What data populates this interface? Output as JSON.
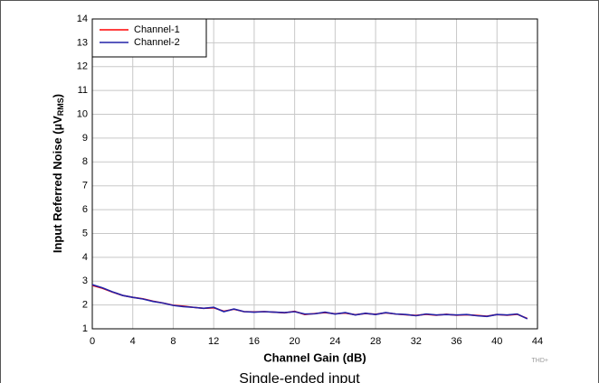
{
  "chart_data": {
    "type": "line",
    "xlabel": "Channel Gain (dB)",
    "ylabel": "Input Referred Noise (µV",
    "ylabel_sub": "RMS",
    "ylabel_end": ")",
    "x": [
      0,
      1,
      2,
      3,
      4,
      5,
      6,
      7,
      8,
      9,
      10,
      11,
      12,
      13,
      14,
      15,
      16,
      17,
      18,
      19,
      20,
      21,
      22,
      23,
      24,
      25,
      26,
      27,
      28,
      29,
      30,
      31,
      32,
      33,
      34,
      35,
      36,
      37,
      38,
      39,
      40,
      41,
      42,
      43
    ],
    "series": [
      {
        "name": "Channel-1",
        "color": "#ff0000",
        "values": [
          2.82,
          2.7,
          2.54,
          2.4,
          2.32,
          2.26,
          2.16,
          2.08,
          1.99,
          1.95,
          1.9,
          1.86,
          1.88,
          1.74,
          1.82,
          1.72,
          1.71,
          1.72,
          1.7,
          1.67,
          1.73,
          1.6,
          1.64,
          1.68,
          1.63,
          1.66,
          1.59,
          1.64,
          1.61,
          1.67,
          1.62,
          1.59,
          1.56,
          1.61,
          1.57,
          1.61,
          1.57,
          1.59,
          1.56,
          1.53,
          1.6,
          1.57,
          1.61,
          1.43
        ]
      },
      {
        "name": "Channel-2",
        "color": "#2222a8",
        "values": [
          2.85,
          2.72,
          2.55,
          2.4,
          2.32,
          2.25,
          2.15,
          2.08,
          1.98,
          1.93,
          1.9,
          1.86,
          1.9,
          1.72,
          1.83,
          1.72,
          1.7,
          1.72,
          1.7,
          1.68,
          1.72,
          1.62,
          1.63,
          1.7,
          1.62,
          1.68,
          1.58,
          1.65,
          1.6,
          1.68,
          1.62,
          1.6,
          1.55,
          1.62,
          1.58,
          1.6,
          1.58,
          1.6,
          1.55,
          1.52,
          1.6,
          1.58,
          1.62,
          1.42
        ]
      }
    ],
    "xlim": [
      0,
      44
    ],
    "xticks": [
      0,
      4,
      8,
      12,
      16,
      20,
      24,
      28,
      32,
      36,
      40,
      44
    ],
    "ylim": [
      1,
      14
    ],
    "yticks": [
      1,
      2,
      3,
      4,
      5,
      6,
      7,
      8,
      9,
      10,
      11,
      12,
      13,
      14
    ],
    "grid": true,
    "legend": "upper-left",
    "note": "THD+",
    "caption": "Single-ended input"
  }
}
